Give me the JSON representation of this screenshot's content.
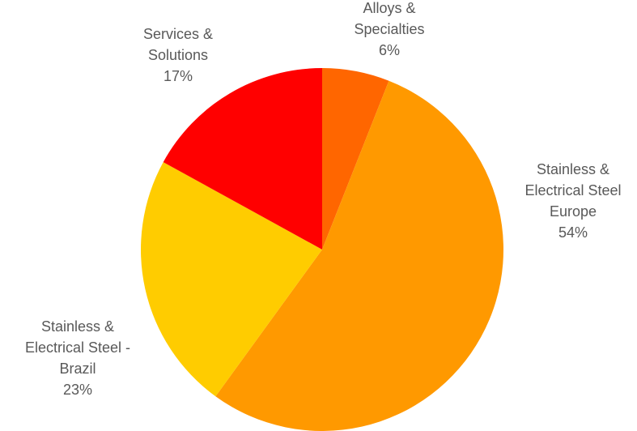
{
  "chart_data": {
    "type": "pie",
    "title": "",
    "start_angle_deg": 0,
    "direction": "clockwise",
    "slices": [
      {
        "name": "Alloys & Specialties",
        "label_lines": [
          "Alloys &",
          "Specialties"
        ],
        "value": 6,
        "value_label": "6%",
        "color": "#FF6600"
      },
      {
        "name": "Stainless & Electrical Steel Europe",
        "label_lines": [
          "Stainless &",
          "Electrical Steel",
          "Europe"
        ],
        "value": 54,
        "value_label": "54%",
        "color": "#FF9900"
      },
      {
        "name": "Stainless & Electrical Steel - Brazil",
        "label_lines": [
          "Stainless &",
          "Electrical Steel -",
          "Brazil"
        ],
        "value": 23,
        "value_label": "23%",
        "color": "#FFCC00"
      },
      {
        "name": "Services & Solutions",
        "label_lines": [
          "Services &",
          "Solutions"
        ],
        "value": 17,
        "value_label": "17%",
        "color": "#FF0000"
      }
    ]
  }
}
